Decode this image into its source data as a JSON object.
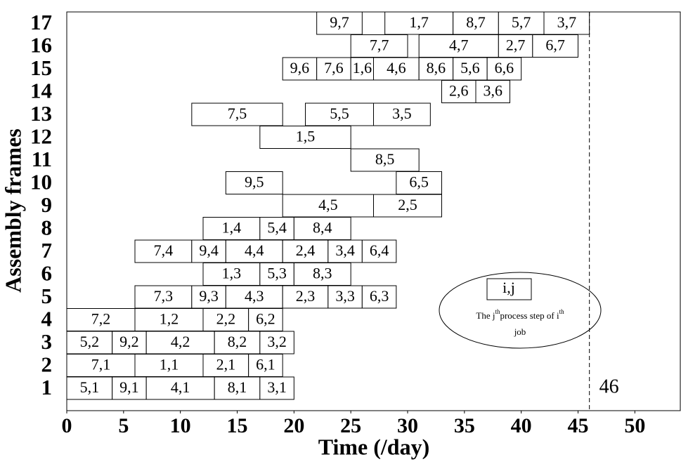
{
  "chart_data": {
    "type": "gantt",
    "xlabel": "Time (/day)",
    "ylabel": "Assembly frames",
    "xlim": [
      0,
      54
    ],
    "xticks": [
      0,
      5,
      10,
      15,
      20,
      25,
      30,
      35,
      40,
      45,
      50
    ],
    "categories": [
      "1",
      "2",
      "3",
      "4",
      "5",
      "6",
      "7",
      "8",
      "9",
      "10",
      "11",
      "12",
      "13",
      "14",
      "15",
      "16",
      "17"
    ],
    "rows": [
      [
        {
          "name": "5,1",
          "start": 0,
          "end": 4
        },
        {
          "name": "9,1",
          "start": 4,
          "end": 7
        },
        {
          "name": "4,1",
          "start": 7,
          "end": 13
        },
        {
          "name": "8,1",
          "start": 13,
          "end": 17
        },
        {
          "name": "3,1",
          "start": 17,
          "end": 20
        }
      ],
      [
        {
          "name": "7,1",
          "start": 0,
          "end": 6
        },
        {
          "name": "1,1",
          "start": 6,
          "end": 12
        },
        {
          "name": "2,1",
          "start": 12,
          "end": 16
        },
        {
          "name": "6,1",
          "start": 16,
          "end": 19
        }
      ],
      [
        {
          "name": "5,2",
          "start": 0,
          "end": 4
        },
        {
          "name": "9,2",
          "start": 4,
          "end": 7
        },
        {
          "name": "4,2",
          "start": 7,
          "end": 13
        },
        {
          "name": "8,2",
          "start": 13,
          "end": 17
        },
        {
          "name": "3,2",
          "start": 17,
          "end": 20
        }
      ],
      [
        {
          "name": "7,2",
          "start": 0,
          "end": 6
        },
        {
          "name": "1,2",
          "start": 6,
          "end": 12
        },
        {
          "name": "2,2",
          "start": 12,
          "end": 16
        },
        {
          "name": "6,2",
          "start": 16,
          "end": 19
        }
      ],
      [
        {
          "name": "7,3",
          "start": 6,
          "end": 11
        },
        {
          "name": "9,3",
          "start": 11,
          "end": 14
        },
        {
          "name": "4,3",
          "start": 14,
          "end": 19
        },
        {
          "name": "2,3",
          "start": 19,
          "end": 23
        },
        {
          "name": "3,3",
          "start": 23,
          "end": 26
        },
        {
          "name": "6,3",
          "start": 26,
          "end": 29
        }
      ],
      [
        {
          "name": "1,3",
          "start": 12,
          "end": 17
        },
        {
          "name": "5,3",
          "start": 17,
          "end": 20
        },
        {
          "name": "8,3",
          "start": 20,
          "end": 25
        }
      ],
      [
        {
          "name": "7,4",
          "start": 6,
          "end": 11
        },
        {
          "name": "9,4",
          "start": 11,
          "end": 14
        },
        {
          "name": "4,4",
          "start": 14,
          "end": 19
        },
        {
          "name": "2,4",
          "start": 19,
          "end": 23
        },
        {
          "name": "3,4",
          "start": 23,
          "end": 26
        },
        {
          "name": "6,4",
          "start": 26,
          "end": 29
        }
      ],
      [
        {
          "name": "1,4",
          "start": 12,
          "end": 17
        },
        {
          "name": "5,4",
          "start": 17,
          "end": 20
        },
        {
          "name": "8,4",
          "start": 20,
          "end": 25
        }
      ],
      [
        {
          "name": "4,5",
          "start": 19,
          "end": 27
        },
        {
          "name": "2,5",
          "start": 27,
          "end": 33
        }
      ],
      [
        {
          "name": "9,5",
          "start": 14,
          "end": 19
        },
        {
          "name": "6,5",
          "start": 29,
          "end": 33
        }
      ],
      [
        {
          "name": "8,5",
          "start": 25,
          "end": 31
        }
      ],
      [
        {
          "name": "1,5",
          "start": 17,
          "end": 25
        }
      ],
      [
        {
          "name": "7,5",
          "start": 11,
          "end": 19
        },
        {
          "name": "5,5",
          "start": 21,
          "end": 27
        },
        {
          "name": "3,5",
          "start": 27,
          "end": 32
        }
      ],
      [
        {
          "name": "2,6",
          "start": 33,
          "end": 36
        },
        {
          "name": "3,6",
          "start": 36,
          "end": 39
        }
      ],
      [
        {
          "name": "9,6",
          "start": 19,
          "end": 22
        },
        {
          "name": "7,6",
          "start": 22,
          "end": 25
        },
        {
          "name": "1,6",
          "start": 25,
          "end": 27
        },
        {
          "name": "4,6",
          "start": 27,
          "end": 31
        },
        {
          "name": "8,6",
          "start": 31,
          "end": 34
        },
        {
          "name": "5,6",
          "start": 34,
          "end": 37
        },
        {
          "name": "6,6",
          "start": 37,
          "end": 40
        }
      ],
      [
        {
          "name": "7,7",
          "start": 25,
          "end": 30
        },
        {
          "name": "4,7",
          "start": 31,
          "end": 38
        },
        {
          "name": "2,7",
          "start": 38,
          "end": 41
        },
        {
          "name": "6,7",
          "start": 41,
          "end": 45
        }
      ],
      [
        {
          "name": "9,7",
          "start": 22,
          "end": 26
        },
        {
          "name": "1,7",
          "start": 28,
          "end": 34
        },
        {
          "name": "8,7",
          "start": 34,
          "end": 38
        },
        {
          "name": "5,7",
          "start": 38,
          "end": 42
        },
        {
          "name": "3,7",
          "start": 42,
          "end": 46
        }
      ]
    ],
    "makespan": 46,
    "legend": {
      "box": "i,j",
      "line1": [
        "The j",
        "th",
        "process step of i",
        "th"
      ],
      "line2": "job"
    }
  }
}
